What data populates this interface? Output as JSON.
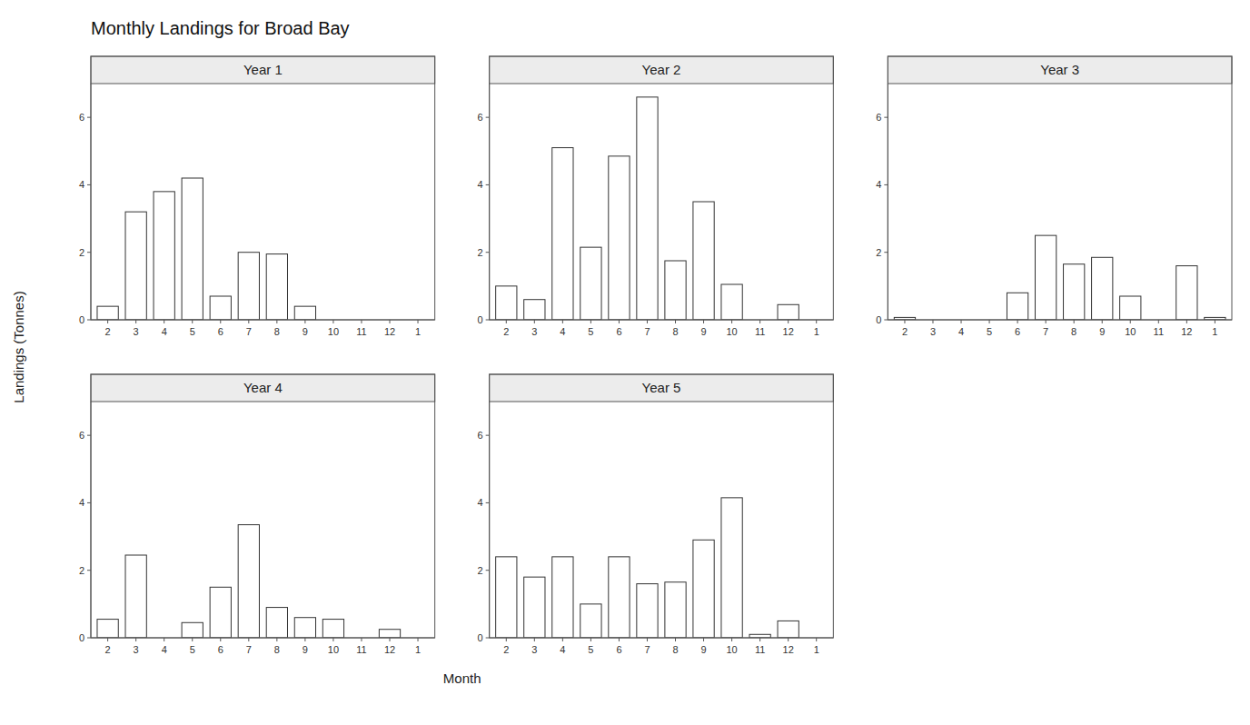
{
  "title": "Monthly Landings for Broad Bay",
  "ylabel": "Landings (Tonnes)",
  "xlabel": "Month",
  "chart_data": [
    {
      "type": "bar",
      "title": "Year 1",
      "categories": [
        "2",
        "3",
        "4",
        "5",
        "6",
        "7",
        "8",
        "9",
        "10",
        "11",
        "12",
        "1"
      ],
      "values": [
        0.4,
        3.2,
        3.8,
        4.2,
        0.7,
        2.0,
        1.95,
        0.4,
        0,
        0,
        0,
        0
      ],
      "color": "white",
      "ylim": [
        0,
        7
      ],
      "yticks": [
        0,
        2,
        4,
        6
      ]
    },
    {
      "type": "bar",
      "title": "Year 2",
      "categories": [
        "2",
        "3",
        "4",
        "5",
        "6",
        "7",
        "8",
        "9",
        "10",
        "11",
        "12",
        "1"
      ],
      "values": [
        1.0,
        0.6,
        5.1,
        2.15,
        4.85,
        6.6,
        1.75,
        3.5,
        1.05,
        0,
        0.45,
        0
      ],
      "color": "white",
      "ylim": [
        0,
        7
      ],
      "yticks": [
        0,
        2,
        4,
        6
      ]
    },
    {
      "type": "bar",
      "title": "Year 3",
      "categories": [
        "2",
        "3",
        "4",
        "5",
        "6",
        "7",
        "8",
        "9",
        "10",
        "11",
        "12",
        "1"
      ],
      "values": [
        0.07,
        0,
        0,
        0,
        0.8,
        2.5,
        1.65,
        1.85,
        0.7,
        0,
        1.6,
        0.07
      ],
      "color": "white",
      "ylim": [
        0,
        7
      ],
      "yticks": [
        0,
        2,
        4,
        6
      ]
    },
    {
      "type": "bar",
      "title": "Year 4",
      "categories": [
        "2",
        "3",
        "4",
        "5",
        "6",
        "7",
        "8",
        "9",
        "10",
        "11",
        "12",
        "1"
      ],
      "values": [
        0.55,
        2.45,
        0,
        0.45,
        1.5,
        3.35,
        0.9,
        0.6,
        0.55,
        0,
        0.25,
        0
      ],
      "color": "white",
      "ylim": [
        0,
        7
      ],
      "yticks": [
        0,
        2,
        4,
        6
      ]
    },
    {
      "type": "bar",
      "title": "Year 5",
      "categories": [
        "2",
        "3",
        "4",
        "5",
        "6",
        "7",
        "8",
        "9",
        "10",
        "11",
        "12",
        "1"
      ],
      "values": [
        2.4,
        1.8,
        2.4,
        1.0,
        2.4,
        1.6,
        1.65,
        2.9,
        4.15,
        0.1,
        0.5,
        0
      ],
      "color": "white",
      "ylim": [
        0,
        7
      ],
      "yticks": [
        0,
        2,
        4,
        6
      ]
    }
  ]
}
